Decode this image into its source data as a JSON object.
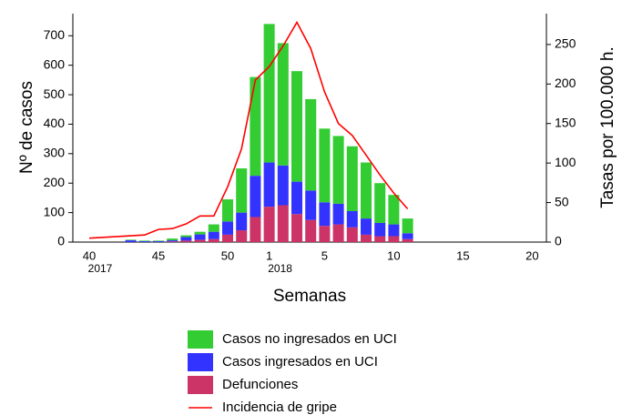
{
  "chart_data": {
    "type": "bar",
    "stacked": true,
    "y_label": "Nº de casos",
    "y2_label": "Tasas por 100.000 h.",
    "x_label": "Semanas",
    "categories": [
      "40",
      null,
      null,
      null,
      null,
      "45",
      null,
      null,
      null,
      null,
      "50",
      null,
      null,
      "1",
      null,
      null,
      null,
      "5",
      null,
      null,
      null,
      null,
      "10",
      null,
      null,
      null,
      null,
      "15",
      null,
      null,
      null,
      null,
      "20"
    ],
    "year_labels": [
      "2017",
      "2018"
    ],
    "series": [
      {
        "name": "Casos no ingresados en UCI",
        "color": "#33cc33",
        "type": "bar",
        "values": [
          0,
          0,
          0,
          2,
          2,
          2,
          6,
          6,
          9,
          25,
          75,
          150,
          335,
          470,
          415,
          375,
          310,
          250,
          230,
          220,
          190,
          135,
          100,
          50,
          0,
          0,
          0,
          0,
          0,
          0,
          0,
          0,
          0
        ]
      },
      {
        "name": "Casos ingresados en UCI",
        "color": "#3333ff",
        "type": "bar",
        "values": [
          0,
          0,
          0,
          6,
          3,
          3,
          4,
          12,
          18,
          25,
          45,
          60,
          140,
          150,
          135,
          110,
          100,
          80,
          70,
          55,
          55,
          45,
          40,
          20,
          0,
          0,
          0,
          0,
          0,
          0,
          0,
          0,
          0
        ]
      },
      {
        "name": "Defunciones",
        "color": "#cc3366",
        "type": "bar",
        "values": [
          0,
          0,
          0,
          0,
          0,
          0,
          2,
          5,
          8,
          10,
          25,
          40,
          85,
          120,
          125,
          95,
          75,
          55,
          60,
          50,
          25,
          20,
          20,
          10,
          0,
          0,
          0,
          0,
          0,
          0,
          0,
          0,
          0
        ]
      },
      {
        "name": "Incidencia de gripe",
        "color": "#ff0000",
        "type": "line",
        "axis": "y2",
        "values": [
          5,
          6,
          7,
          8,
          9,
          16,
          17,
          23,
          33,
          33,
          70,
          118,
          205,
          222,
          248,
          278,
          245,
          190,
          150,
          135,
          110,
          85,
          62,
          42,
          null,
          null,
          null,
          null,
          null,
          null,
          null,
          null,
          null
        ]
      }
    ],
    "ylim": [
      0,
      775
    ],
    "yticks": [
      0,
      100,
      200,
      300,
      400,
      500,
      600,
      700
    ],
    "y2lim": [
      0,
      289
    ],
    "y2ticks": [
      0,
      50,
      100,
      150,
      200,
      250
    ],
    "grid": false
  }
}
